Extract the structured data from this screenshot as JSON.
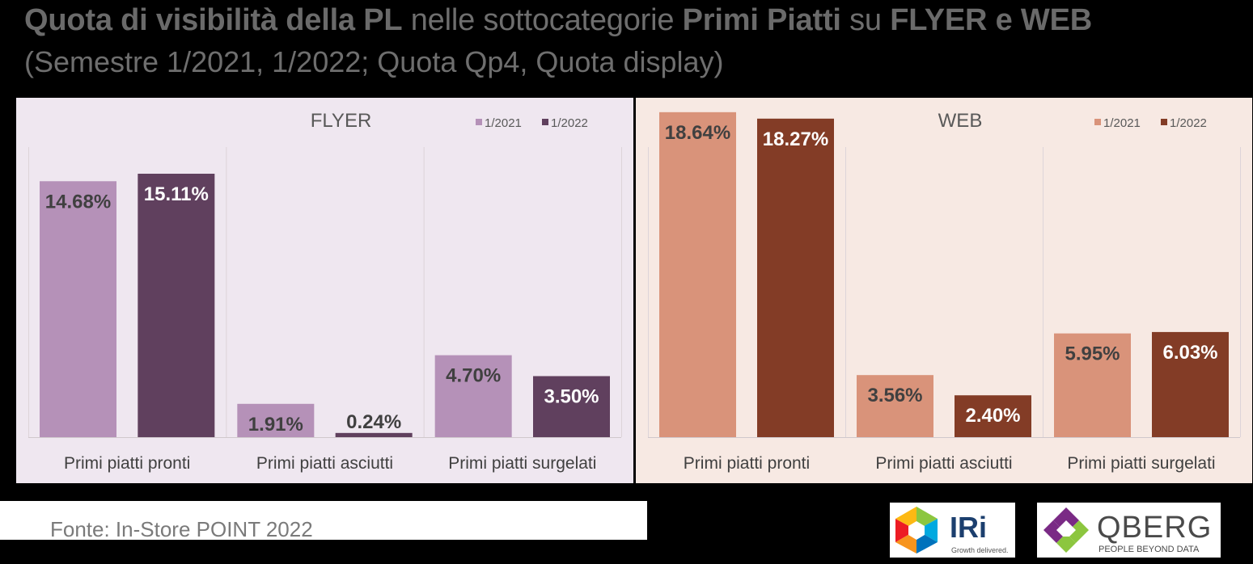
{
  "title": {
    "part1": "Quota di visibilità della PL",
    "part2": " nelle sottocategorie ",
    "part3": "Primi Piatti",
    "part4": " su ",
    "part5": "FLYER e WEB"
  },
  "subtitle": "(Semestre 1/2021, 1/2022; Quota Qp4, Quota display)",
  "source": "Fonte: In-Store POINT 2022",
  "logos": {
    "iri": {
      "word": "IRi",
      "tagline": "Growth delivered."
    },
    "qberg": {
      "word": "QBERG",
      "tagline": "PEOPLE BEYOND DATA"
    }
  },
  "chart_data": [
    {
      "type": "bar",
      "title": "FLYER",
      "categories": [
        "Primi piatti pronti",
        "Primi piatti asciutti",
        "Primi piatti surgelati"
      ],
      "series": [
        {
          "name": "1/2021",
          "values": [
            14.68,
            1.91,
            4.7
          ],
          "labels": [
            "14.68%",
            "1.91%",
            "4.70%"
          ],
          "color": "#b591b8"
        },
        {
          "name": "1/2022",
          "values": [
            15.11,
            0.24,
            3.5
          ],
          "labels": [
            "15.11%",
            "0.24%",
            "3.50%"
          ],
          "color": "#60405e"
        }
      ],
      "background": "#efe7f0",
      "grid": false,
      "legend": "top-right"
    },
    {
      "type": "bar",
      "title": "WEB",
      "categories": [
        "Primi piatti pronti",
        "Primi piatti asciutti",
        "Primi piatti surgelati"
      ],
      "series": [
        {
          "name": "1/2021",
          "values": [
            18.64,
            3.56,
            5.95
          ],
          "labels": [
            "18.64%",
            "3.56%",
            "5.95%"
          ],
          "color": "#d9937a"
        },
        {
          "name": "1/2022",
          "values": [
            18.27,
            2.4,
            6.03
          ],
          "labels": [
            "18.27%",
            "2.40%",
            "6.03%"
          ],
          "color": "#833c26"
        }
      ],
      "background": "#f7e9e3",
      "grid": false,
      "legend": "top-right"
    }
  ]
}
